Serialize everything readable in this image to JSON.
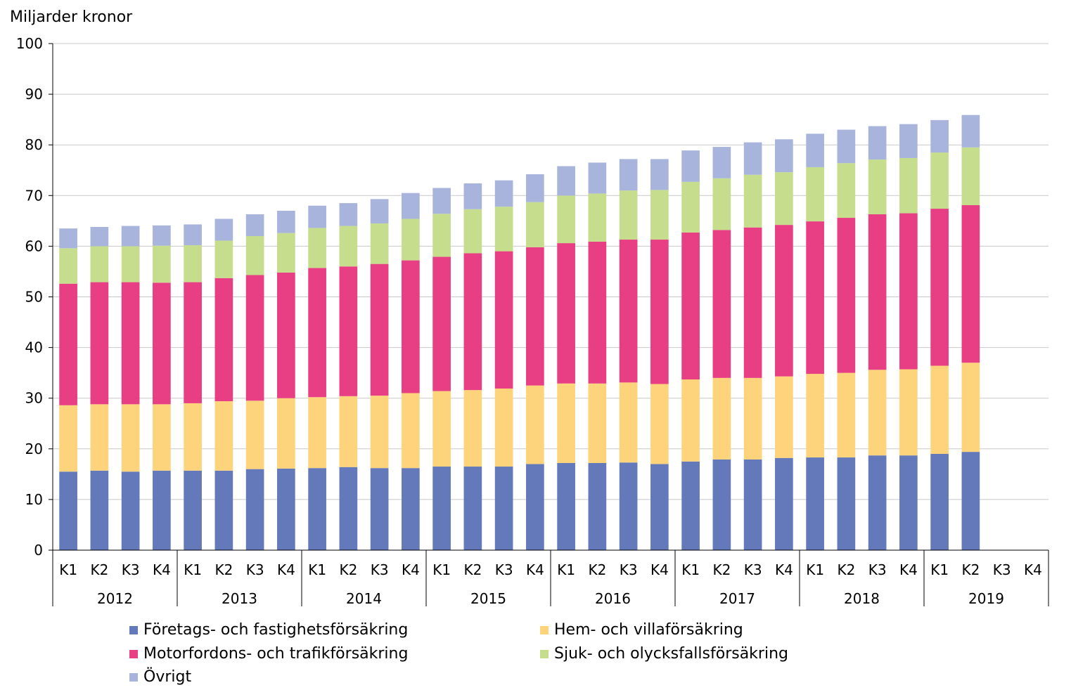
{
  "chart_data": {
    "type": "bar",
    "stacked": true,
    "ylabel": "Miljarder kronor",
    "xlabel": "",
    "ylim": [
      0,
      100
    ],
    "yticks": [
      0,
      10,
      20,
      30,
      40,
      50,
      60,
      70,
      80,
      90,
      100
    ],
    "grid": true,
    "legend_position": "bottom",
    "quarters": [
      "K1",
      "K2",
      "K3",
      "K4"
    ],
    "years": [
      "2012",
      "2013",
      "2014",
      "2015",
      "2016",
      "2017",
      "2018",
      "2019"
    ],
    "categories": [
      "K1 2012",
      "K2 2012",
      "K3 2012",
      "K4 2012",
      "K1 2013",
      "K2 2013",
      "K3 2013",
      "K4 2013",
      "K1 2014",
      "K2 2014",
      "K3 2014",
      "K4 2014",
      "K1 2015",
      "K2 2015",
      "K3 2015",
      "K4 2015",
      "K1 2016",
      "K2 2016",
      "K3 2016",
      "K4 2016",
      "K1 2017",
      "K2 2017",
      "K3 2017",
      "K4 2017",
      "K1 2018",
      "K2 2018",
      "K3 2018",
      "K4 2018",
      "K1 2019",
      "K2 2019",
      "K3 2019",
      "K4 2019"
    ],
    "series": [
      {
        "name": "Företags- och fastighetsförsäkring",
        "color": "#6479ba",
        "values": [
          15.5,
          15.7,
          15.5,
          15.7,
          15.7,
          15.7,
          16.0,
          16.1,
          16.2,
          16.4,
          16.2,
          16.2,
          16.5,
          16.5,
          16.5,
          17.0,
          17.2,
          17.2,
          17.3,
          17.0,
          17.5,
          17.9,
          17.9,
          18.2,
          18.3,
          18.3,
          18.7,
          18.7,
          19.0,
          19.4,
          null,
          null
        ]
      },
      {
        "name": "Hem- och villaförsäkring",
        "color": "#fdd47c",
        "values": [
          13.1,
          13.1,
          13.3,
          13.1,
          13.3,
          13.7,
          13.5,
          13.9,
          14.0,
          14.0,
          14.3,
          14.8,
          14.9,
          15.1,
          15.4,
          15.5,
          15.7,
          15.7,
          15.8,
          15.8,
          16.2,
          16.1,
          16.1,
          16.1,
          16.5,
          16.7,
          16.9,
          17.0,
          17.4,
          17.6,
          null,
          null
        ]
      },
      {
        "name": "Motorfordons- och trafikförsäkring",
        "color": "#e83e83",
        "values": [
          24.0,
          24.1,
          24.1,
          24.0,
          23.9,
          24.3,
          24.8,
          24.8,
          25.5,
          25.6,
          26.0,
          26.2,
          26.5,
          27.0,
          27.1,
          27.3,
          27.7,
          28.0,
          28.2,
          28.5,
          29.0,
          29.2,
          29.7,
          29.9,
          30.1,
          30.6,
          30.7,
          30.8,
          31.0,
          31.1,
          null,
          null
        ]
      },
      {
        "name": "Sjuk- och olycksfallsförsäkring",
        "color": "#c6dd8d",
        "values": [
          7.0,
          7.1,
          7.1,
          7.3,
          7.3,
          7.4,
          7.7,
          7.8,
          7.9,
          8.0,
          8.0,
          8.2,
          8.5,
          8.7,
          8.8,
          8.9,
          9.4,
          9.5,
          9.7,
          9.8,
          10.0,
          10.2,
          10.4,
          10.4,
          10.7,
          10.8,
          10.8,
          10.9,
          11.1,
          11.4,
          null,
          null
        ]
      },
      {
        "name": "Övrigt",
        "color": "#a8b4dc",
        "values": [
          3.9,
          3.8,
          4.0,
          4.0,
          4.1,
          4.3,
          4.3,
          4.4,
          4.4,
          4.5,
          4.8,
          5.1,
          5.1,
          5.1,
          5.2,
          5.5,
          5.8,
          6.1,
          6.2,
          6.1,
          6.2,
          6.2,
          6.4,
          6.5,
          6.6,
          6.6,
          6.6,
          6.7,
          6.4,
          6.4,
          null,
          null
        ]
      }
    ]
  }
}
